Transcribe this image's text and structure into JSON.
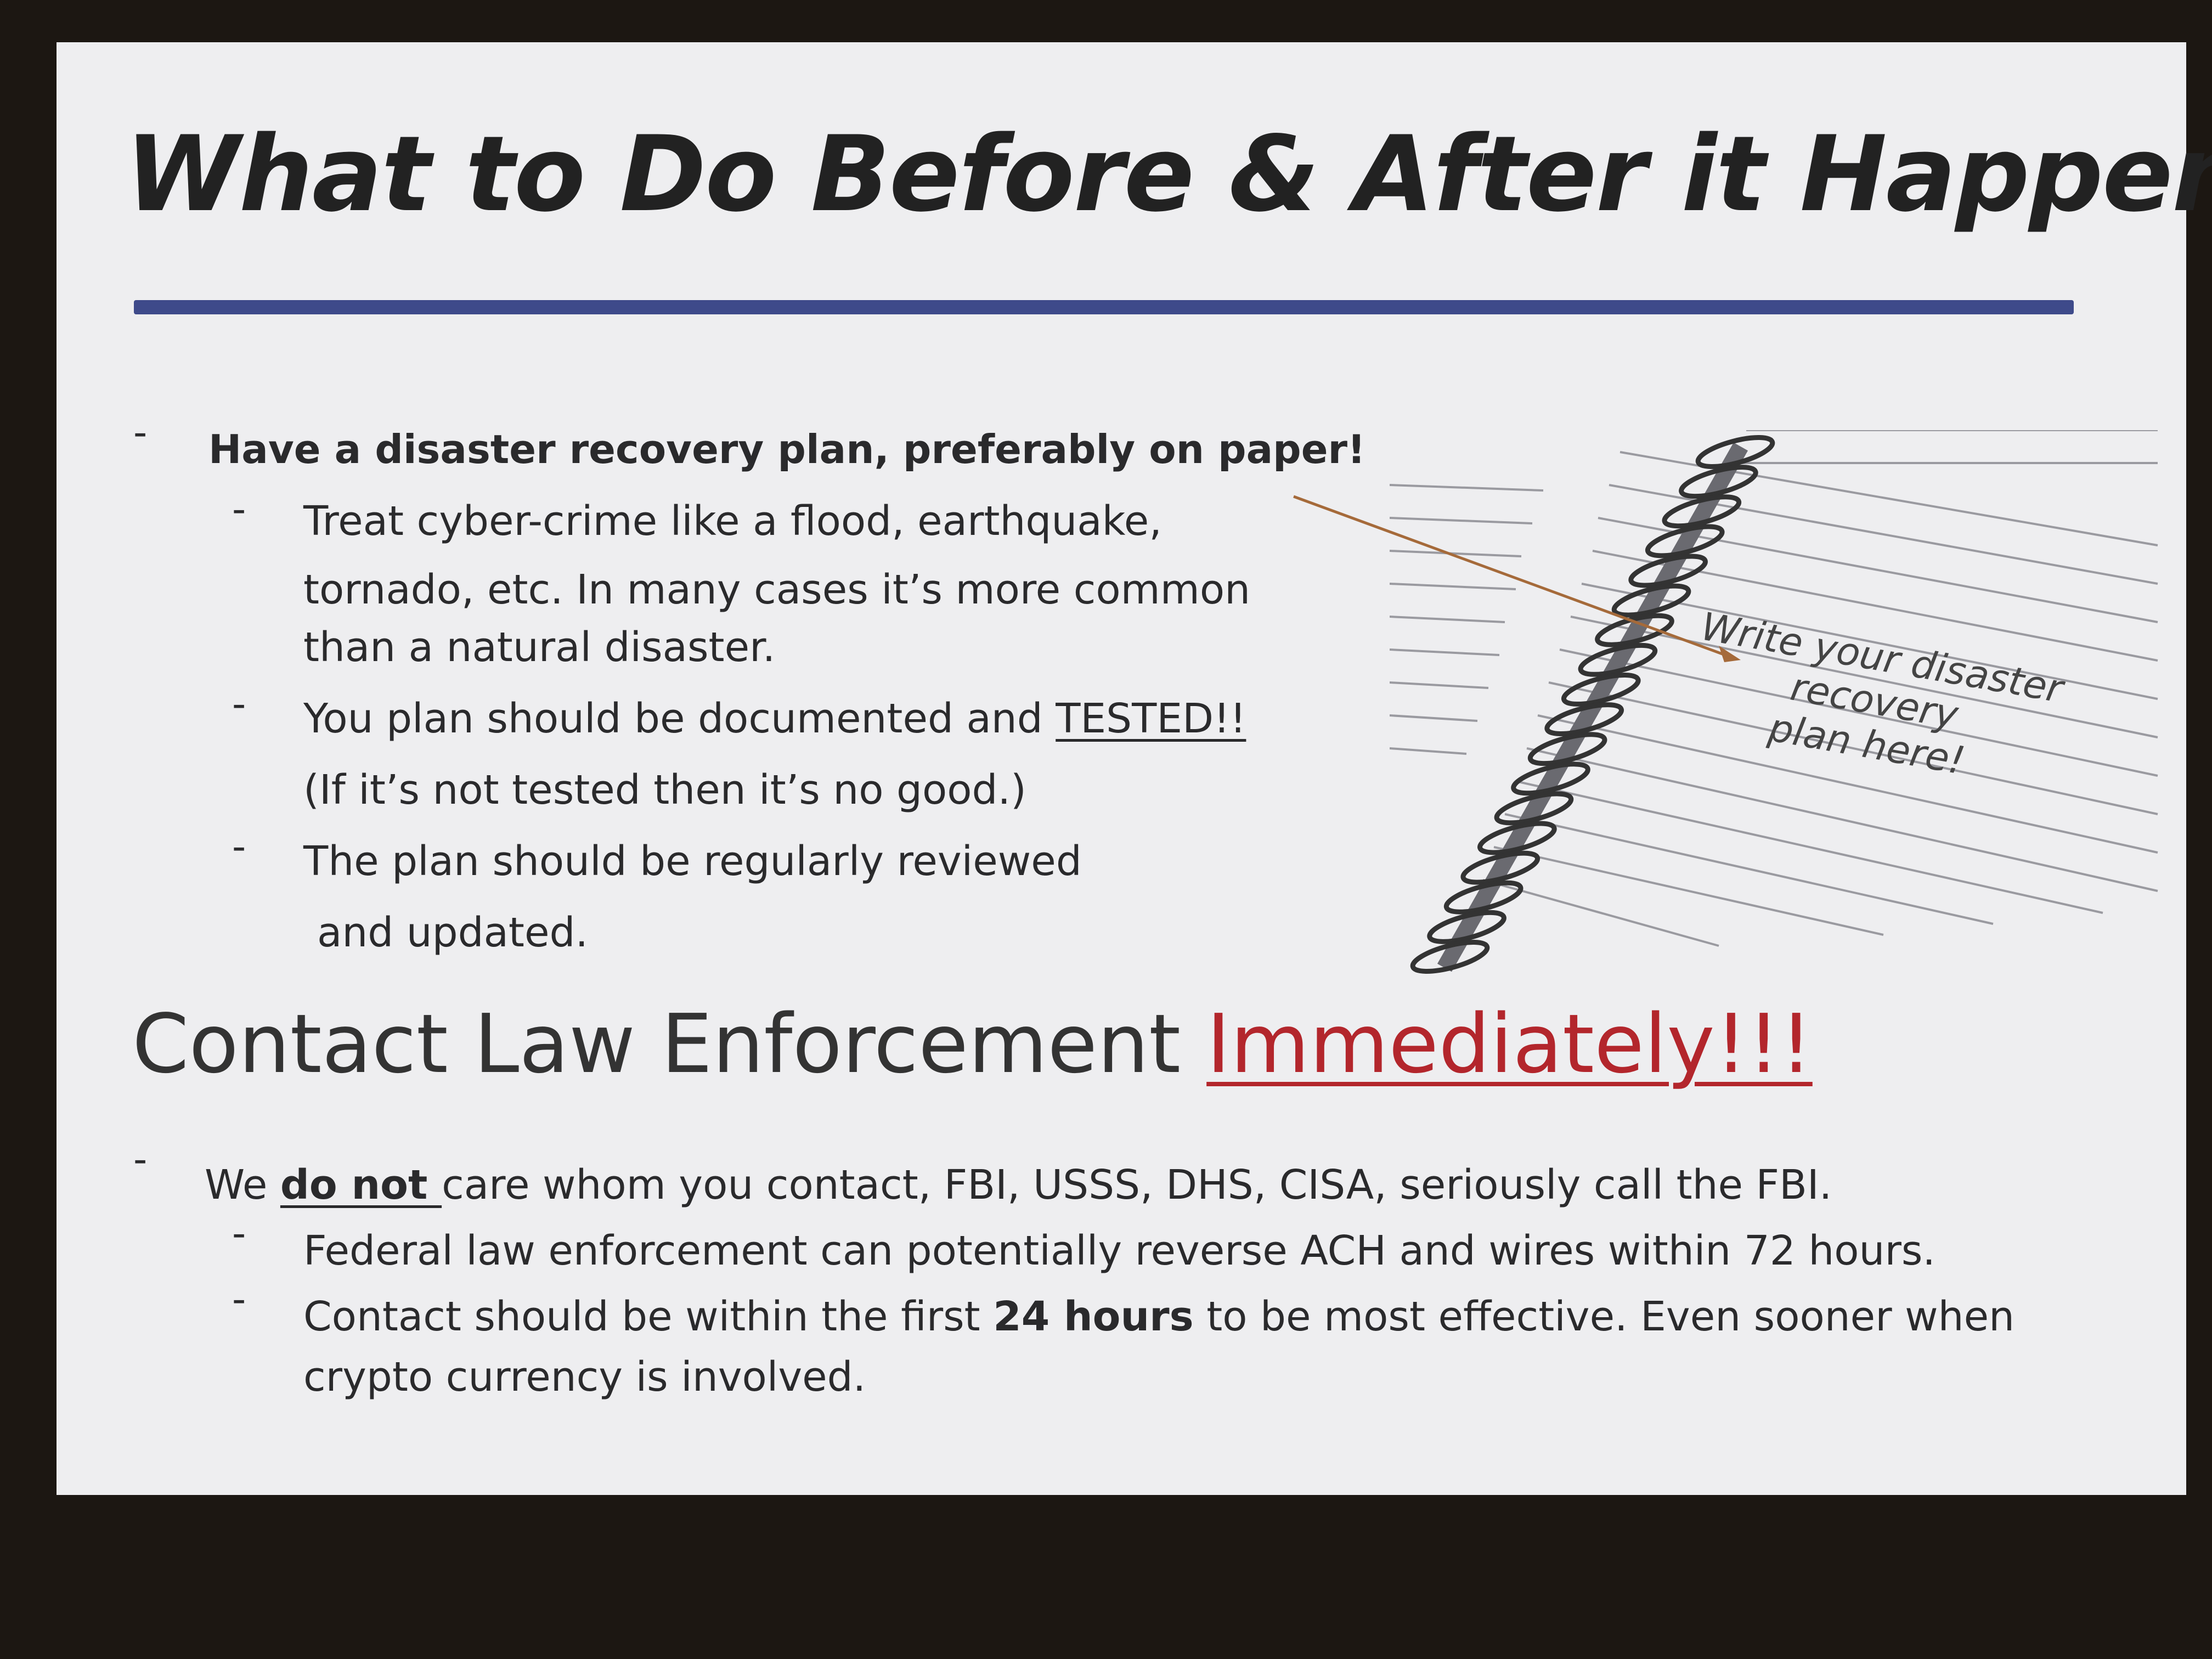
{
  "title": "What to Do Before & After it Happens",
  "plan_section": {
    "bullet": "Have a disaster recovery plan, preferably on paper!",
    "items": [
      {
        "lines": [
          "Treat cyber-crime like a flood, earthquake,",
          "tornado, etc.  In many cases it’s more common",
          "than a natural disaster."
        ]
      },
      {
        "lines": [
          "You plan should be documented and ",
          "TESTED!!",
          "(If it’s not tested then it’s no good.)"
        ]
      },
      {
        "lines": [
          "The plan should be regularly reviewed",
          "and updated."
        ]
      }
    ]
  },
  "notebook_note": [
    "Write your disaster",
    "recovery",
    "plan here!"
  ],
  "contact_section": {
    "heading": [
      "Contact Law Enforcement ",
      "Immediately!!!"
    ],
    "bullet": [
      "We ",
      "do not ",
      "care whom you contact, FBI, USSS, DHS, CISA, seriously call the FBI."
    ],
    "items": [
      {
        "lines": [
          "Federal law enforcement can potentially reverse ACH and wires within 72 hours."
        ]
      },
      {
        "lines": [
          "Contact should be within the first ",
          "24 hours",
          " to be most effective.  Even sooner when",
          "crypto currency is involved."
        ]
      }
    ]
  }
}
